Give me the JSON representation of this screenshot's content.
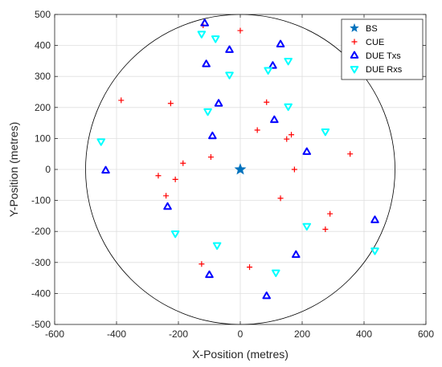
{
  "chart_data": {
    "type": "scatter",
    "xlabel": "X-Position (metres)",
    "ylabel": "Y-Position (metres)",
    "xlim": [
      -600,
      600
    ],
    "ylim": [
      -500,
      500
    ],
    "xticks": [
      -600,
      -400,
      -200,
      0,
      200,
      400,
      600
    ],
    "yticks": [
      -500,
      -400,
      -300,
      -200,
      -100,
      0,
      100,
      200,
      300,
      400,
      500
    ],
    "grid": true,
    "legend_position": "top-right",
    "circle": {
      "center": [
        0,
        0
      ],
      "radius": 500,
      "color": "#000000"
    },
    "series": [
      {
        "name": "BS",
        "marker": "star",
        "color": "#0072BD",
        "points": [
          [
            0,
            0
          ]
        ]
      },
      {
        "name": "CUE",
        "marker": "plus",
        "color": "#FF0000",
        "points": [
          [
            -120,
            465
          ],
          [
            0,
            448
          ],
          [
            -385,
            223
          ],
          [
            -225,
            213
          ],
          [
            85,
            217
          ],
          [
            55,
            127
          ],
          [
            165,
            112
          ],
          [
            150,
            98
          ],
          [
            355,
            50
          ],
          [
            -95,
            40
          ],
          [
            -185,
            20
          ],
          [
            175,
            0
          ],
          [
            -265,
            -20
          ],
          [
            -210,
            -32
          ],
          [
            -240,
            -85
          ],
          [
            130,
            -93
          ],
          [
            290,
            -143
          ],
          [
            275,
            -193
          ],
          [
            -125,
            -305
          ],
          [
            30,
            -315
          ]
        ]
      },
      {
        "name": "DUE Txs",
        "marker": "triangle-up",
        "color": "#0000FF",
        "points": [
          [
            -115,
            472
          ],
          [
            130,
            404
          ],
          [
            -35,
            386
          ],
          [
            105,
            335
          ],
          [
            -110,
            340
          ],
          [
            -70,
            213
          ],
          [
            110,
            160
          ],
          [
            -90,
            108
          ],
          [
            215,
            57
          ],
          [
            -435,
            -3
          ],
          [
            -235,
            -120
          ],
          [
            435,
            -163
          ],
          [
            180,
            -275
          ],
          [
            -100,
            -340
          ],
          [
            85,
            -408
          ]
        ]
      },
      {
        "name": "DUE Rxs",
        "marker": "triangle-down",
        "color": "#00FFFF",
        "points": [
          [
            -125,
            437
          ],
          [
            -80,
            422
          ],
          [
            155,
            350
          ],
          [
            90,
            320
          ],
          [
            -35,
            305
          ],
          [
            155,
            203
          ],
          [
            -105,
            187
          ],
          [
            275,
            122
          ],
          [
            -450,
            90
          ],
          [
            215,
            -183
          ],
          [
            -210,
            -207
          ],
          [
            -75,
            -245
          ],
          [
            435,
            -262
          ],
          [
            115,
            -333
          ]
        ]
      }
    ]
  }
}
